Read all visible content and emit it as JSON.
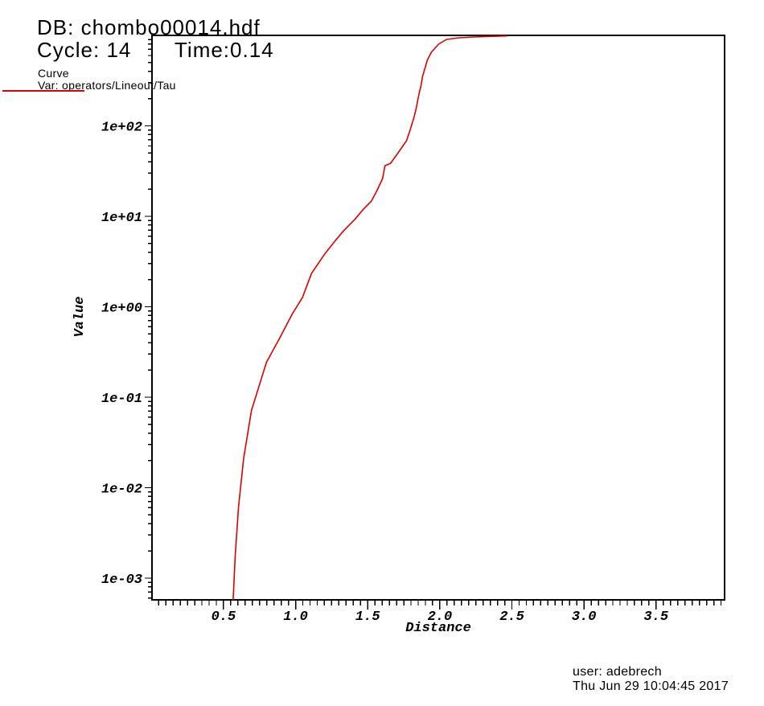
{
  "header": {
    "db_label": "DB: chombo00014.hdf",
    "cycle_label": "Cycle: 14",
    "time_label": "Time:0.14"
  },
  "legend": {
    "plot_type": "Curve",
    "var_label": "Var: operators/Lineout/Tau",
    "line_color": "#dd0000"
  },
  "footer": {
    "user_line": "user: adebrech",
    "date_line": "Thu Jun 29 10:04:45 2017"
  },
  "chart_data": {
    "type": "line",
    "title": "",
    "xlabel": "Distance",
    "ylabel": "Value",
    "x_scale": "linear",
    "y_scale": "log",
    "grid": false,
    "legend_position": "top-left",
    "axis_color": "#000000",
    "background_color": "#ffffff",
    "xlim": [
      0.004,
      3.975
    ],
    "ylim": [
      0.000575,
      1000
    ],
    "x_minor_step": 0.05,
    "x_ticks": [
      {
        "value": 0.5,
        "label": "0.5"
      },
      {
        "value": 1.0,
        "label": "1.0"
      },
      {
        "value": 1.5,
        "label": "1.5"
      },
      {
        "value": 2.0,
        "label": "2.0"
      },
      {
        "value": 2.5,
        "label": "2.5"
      },
      {
        "value": 3.0,
        "label": "3.0"
      },
      {
        "value": 3.5,
        "label": "3.5"
      }
    ],
    "y_ticks": [
      {
        "value": 100,
        "label": "1e+02"
      },
      {
        "value": 10,
        "label": "1e+01"
      },
      {
        "value": 1,
        "label": "1e+00"
      },
      {
        "value": 0.1,
        "label": "1e-01"
      },
      {
        "value": 0.01,
        "label": "1e-02"
      },
      {
        "value": 0.001,
        "label": "1e-03"
      }
    ],
    "series": [
      {
        "name": "operators/Lineout/Tau",
        "color": "#dd0000",
        "points": [
          [
            0.567,
            0.00057
          ],
          [
            0.581,
            0.00179
          ],
          [
            0.604,
            0.0061
          ],
          [
            0.639,
            0.0209
          ],
          [
            0.694,
            0.0714
          ],
          [
            0.798,
            0.244
          ],
          [
            0.89,
            0.452
          ],
          [
            0.977,
            0.835
          ],
          [
            1.047,
            1.26
          ],
          [
            1.11,
            2.33
          ],
          [
            1.204,
            3.88
          ],
          [
            1.271,
            5.28
          ],
          [
            1.332,
            6.89
          ],
          [
            1.409,
            9.18
          ],
          [
            1.47,
            11.97
          ],
          [
            1.525,
            14.7
          ],
          [
            1.564,
            19.2
          ],
          [
            1.603,
            26.1
          ],
          [
            1.62,
            36.2
          ],
          [
            1.658,
            38.5
          ],
          [
            1.703,
            48.2
          ],
          [
            1.769,
            68.4
          ],
          [
            1.797,
            93
          ],
          [
            1.819,
            121
          ],
          [
            1.836,
            155
          ],
          [
            1.847,
            191
          ],
          [
            1.858,
            234
          ],
          [
            1.869,
            275
          ],
          [
            1.88,
            351
          ],
          [
            1.897,
            432
          ],
          [
            1.913,
            530
          ],
          [
            1.941,
            650
          ],
          [
            1.991,
            798
          ],
          [
            2.047,
            903
          ],
          [
            2.135,
            941
          ],
          [
            2.23,
            960
          ],
          [
            2.468,
            985
          ]
        ]
      }
    ]
  }
}
